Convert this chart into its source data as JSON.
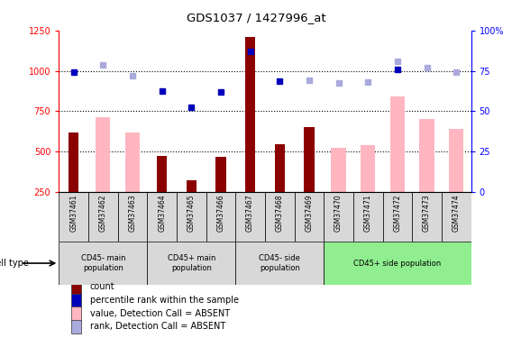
{
  "title": "GDS1037 / 1427996_at",
  "samples": [
    "GSM37461",
    "GSM37462",
    "GSM37463",
    "GSM37464",
    "GSM37465",
    "GSM37466",
    "GSM37467",
    "GSM37468",
    "GSM37469",
    "GSM37470",
    "GSM37471",
    "GSM37472",
    "GSM37473",
    "GSM37474"
  ],
  "count_values": [
    620,
    null,
    null,
    475,
    320,
    465,
    1210,
    545,
    650,
    null,
    null,
    null,
    null,
    null
  ],
  "absent_bar_values": [
    null,
    710,
    620,
    null,
    null,
    null,
    null,
    null,
    null,
    520,
    540,
    840,
    700,
    640
  ],
  "rank_dark_values": [
    990,
    null,
    null,
    875,
    775,
    870,
    1120,
    935,
    null,
    null,
    null,
    1010,
    null,
    null
  ],
  "rank_light_values": [
    null,
    1035,
    970,
    null,
    null,
    null,
    null,
    null,
    940,
    925,
    930,
    1060,
    1020,
    990
  ],
  "ylim_min": 250,
  "ylim_max": 1250,
  "y2lim_min": 0,
  "y2lim_max": 100,
  "group_boundaries": [
    0,
    3,
    6,
    9,
    14
  ],
  "group_labels": [
    "CD45- main\npopulation",
    "CD45+ main\npopulation",
    "CD45- side\npopulation",
    "CD45+ side population"
  ],
  "group_colors": [
    "#d8d8d8",
    "#d8d8d8",
    "#d8d8d8",
    "#90EE90"
  ],
  "count_color": "#8B0000",
  "absent_bar_color": "#FFB6C1",
  "rank_dark_color": "#0000BB",
  "rank_light_color": "#AAAADD",
  "legend_items": [
    {
      "label": "count",
      "color": "#8B0000"
    },
    {
      "label": "percentile rank within the sample",
      "color": "#0000BB"
    },
    {
      "label": "value, Detection Call = ABSENT",
      "color": "#FFB6C1"
    },
    {
      "label": "rank, Detection Call = ABSENT",
      "color": "#AAAADD"
    }
  ]
}
